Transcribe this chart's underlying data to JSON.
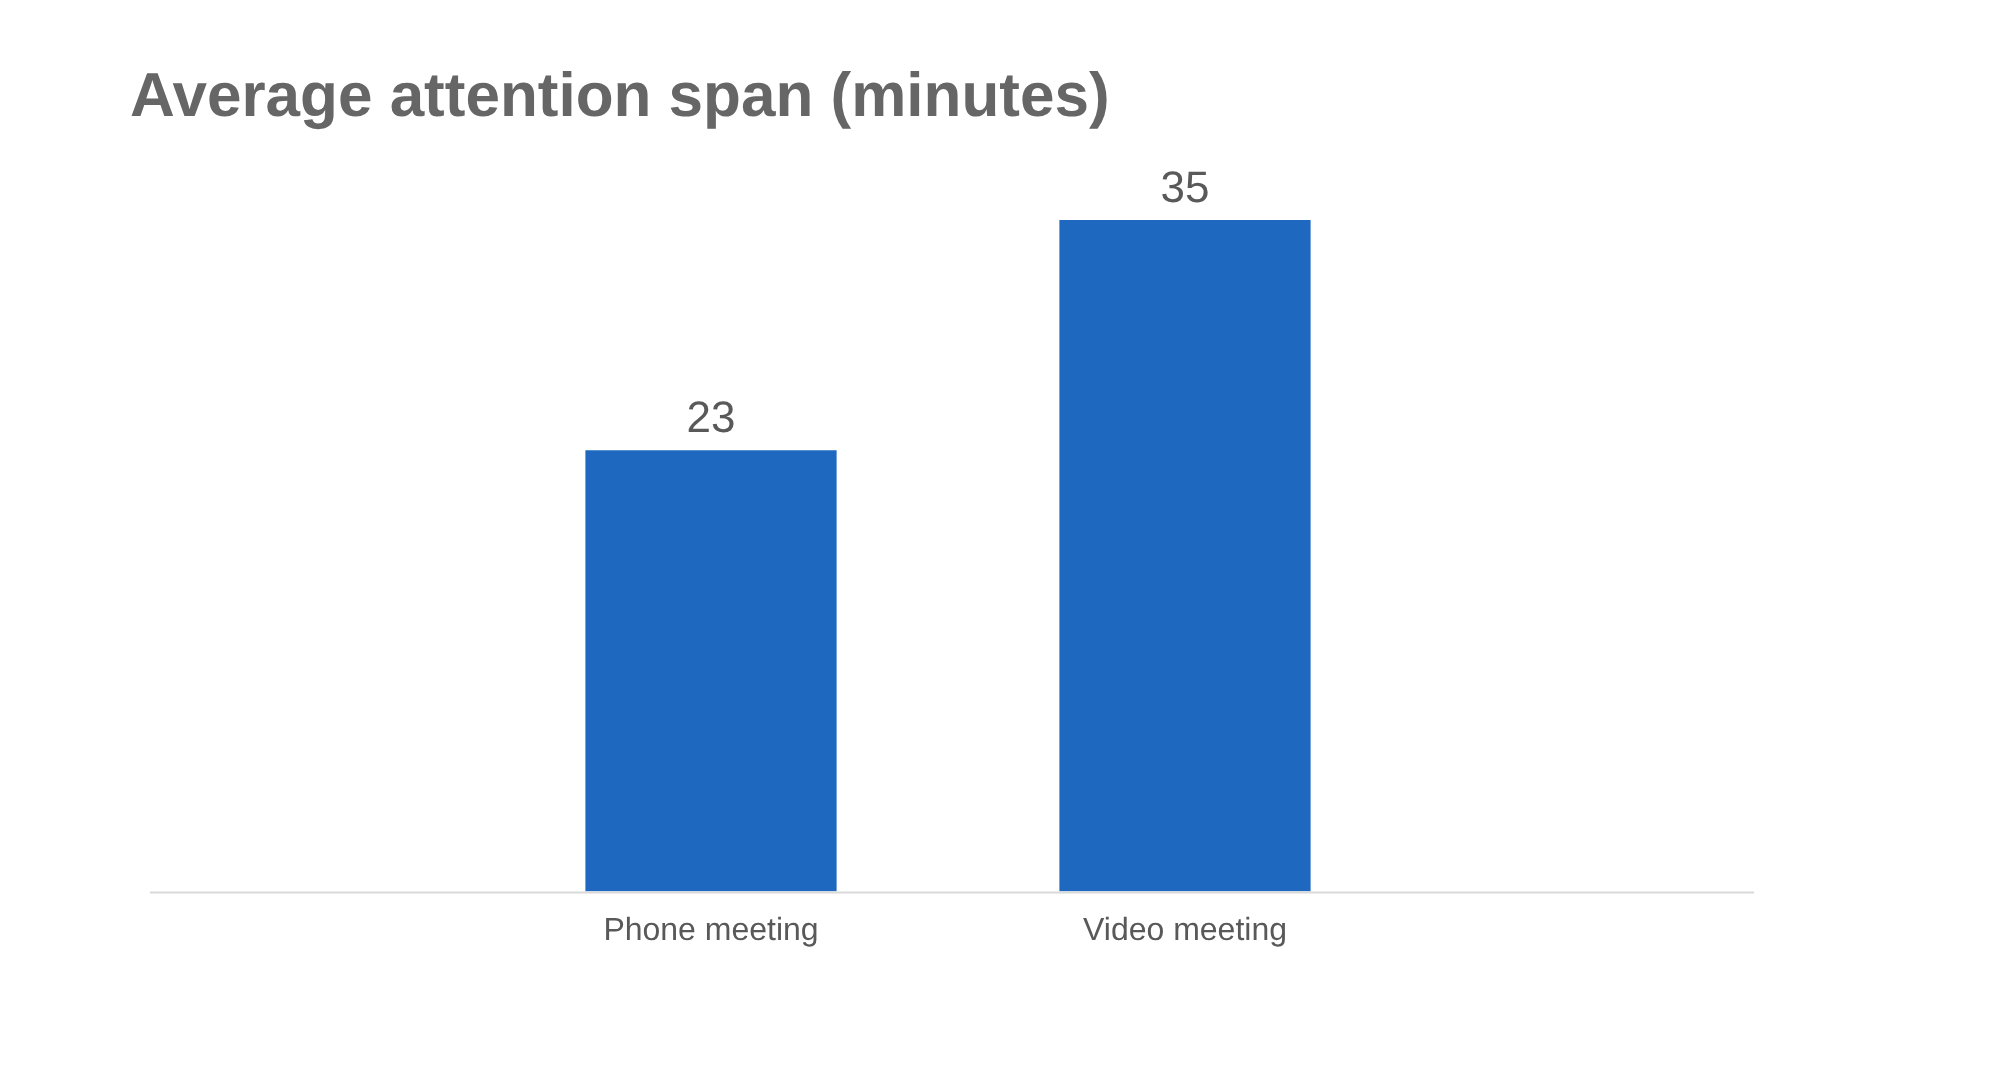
{
  "chart_data": {
    "type": "bar",
    "title": "Average attention span (minutes)",
    "categories": [
      "Phone meeting",
      "Video meeting"
    ],
    "values": [
      23,
      35
    ],
    "color": "#1f68c0",
    "data_labels": true,
    "grid": false,
    "legend": false
  }
}
